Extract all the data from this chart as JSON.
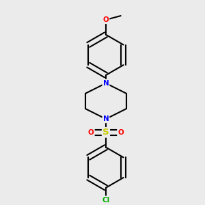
{
  "background_color": "#ebebeb",
  "line_color": "#000000",
  "bond_width": 1.5,
  "atom_colors": {
    "N": "#0000ff",
    "O": "#ff0000",
    "S": "#cccc00",
    "Cl": "#00aa00",
    "C": "#000000"
  },
  "font_size": 7.5,
  "figsize": [
    3.0,
    3.0
  ],
  "dpi": 100
}
